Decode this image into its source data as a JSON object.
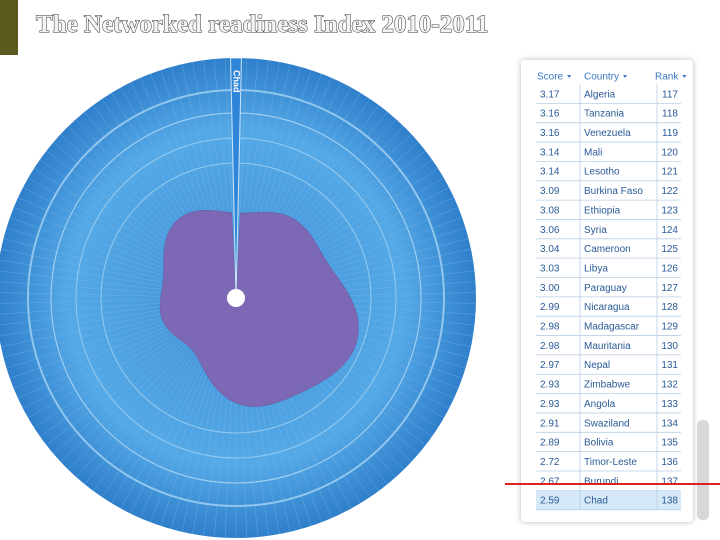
{
  "header": {
    "title": "The Networked readiness Index 2010-2011"
  },
  "wheel": {
    "highlight_label": "Chad"
  },
  "table": {
    "columns": [
      "Score",
      "Country",
      "Rank"
    ],
    "rows": [
      [
        "3.17",
        "Algeria",
        117
      ],
      [
        "3.16",
        "Tanzania",
        118
      ],
      [
        "3.16",
        "Venezuela",
        119
      ],
      [
        "3.14",
        "Mali",
        120
      ],
      [
        "3.14",
        "Lesotho",
        121
      ],
      [
        "3.09",
        "Burkina Faso",
        122
      ],
      [
        "3.08",
        "Ethiopia",
        123
      ],
      [
        "3.06",
        "Syria",
        124
      ],
      [
        "3.04",
        "Cameroon",
        125
      ],
      [
        "3.03",
        "Libya",
        126
      ],
      [
        "3.00",
        "Paraguay",
        127
      ],
      [
        "2.99",
        "Nicaragua",
        128
      ],
      [
        "2.98",
        "Madagascar",
        129
      ],
      [
        "2.98",
        "Mauritania",
        130
      ],
      [
        "2.97",
        "Nepal",
        131
      ],
      [
        "2.93",
        "Zimbabwe",
        132
      ],
      [
        "2.93",
        "Angola",
        133
      ],
      [
        "2.91",
        "Swaziland",
        134
      ],
      [
        "2.89",
        "Bolivia",
        135
      ],
      [
        "2.72",
        "Timor-Leste",
        136
      ],
      [
        "2.67",
        "Burundi",
        137
      ],
      [
        "2.59",
        "Chad",
        138
      ]
    ]
  }
}
